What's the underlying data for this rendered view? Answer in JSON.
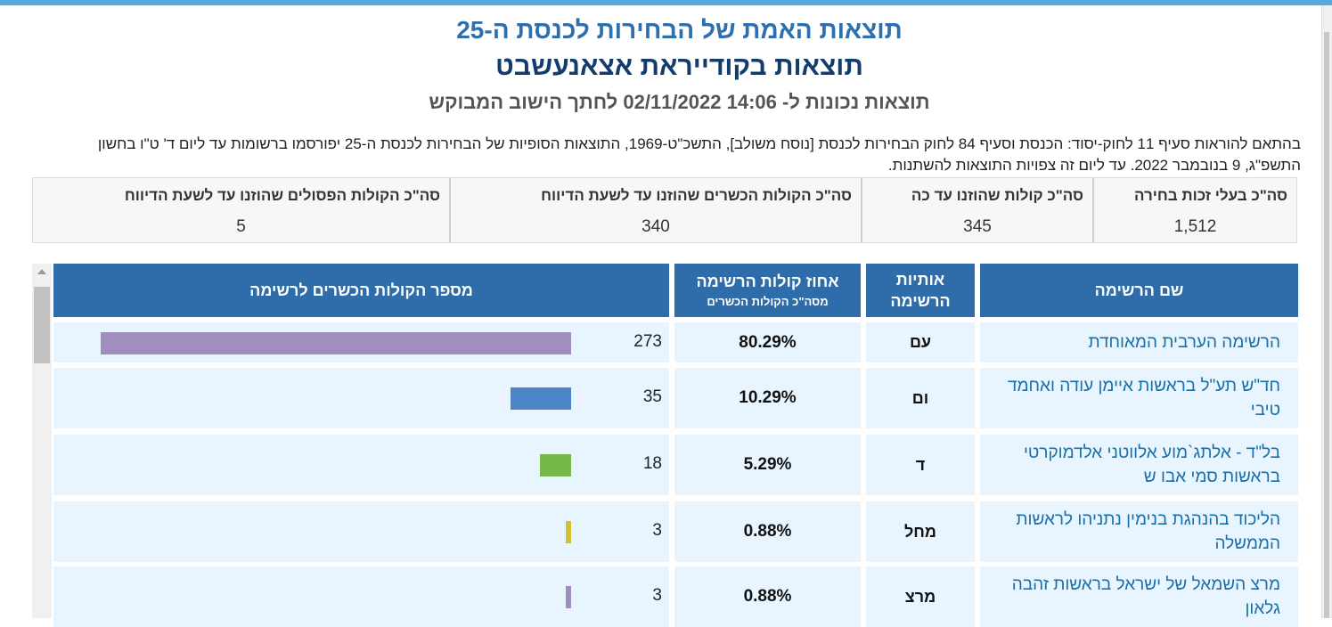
{
  "header": {
    "title": "תוצאות האמת של הבחירות לכנסת ה-25",
    "locality": "תוצאות בקודייראת אצאנעשבט",
    "timestamp_line": "תוצאות נכונות ל- 14:06 02/11/2022  לחתך הישוב המבוקש",
    "note": "בהתאם להוראות סעיף 11 לחוק-יסוד: הכנסת וסעיף 84 לחוק הבחירות לכנסת [נוסח משולב], התשכ\"ט-1969, התוצאות הסופיות של הבחירות לכנסת ה-25 יפורסמו ברשומות עד ליום ד' ט\"ו בחשון התשפ\"ג, 9 בנובמבר 2022. עד ליום זה צפויות התוצאות להשתנות."
  },
  "summary": [
    {
      "label": "סה\"כ בעלי זכות בחירה",
      "value": "1,512"
    },
    {
      "label": "סה\"כ קולות שהוזנו עד כה",
      "value": "345"
    },
    {
      "label": "סה\"כ הקולות הכשרים שהוזנו עד לשעת הדיווח",
      "value": "340"
    },
    {
      "label": "סה\"כ הקולות הפסולים שהוזנו עד לשעת הדיווח",
      "value": "5"
    }
  ],
  "table": {
    "headers": {
      "name": "שם הרשימה",
      "letters": "אותיות הרשימה",
      "percent": "אחוז קולות הרשימה",
      "percent_sub": "מסה\"כ הקולות הכשרים",
      "votes": "מספר הקולות הכשרים לרשימה"
    },
    "rows": [
      {
        "name": "הרשימה הערבית המאוחדת",
        "letters": "עם",
        "percent": "80.29%",
        "votes": 273,
        "color": "#a08ebe"
      },
      {
        "name": "חד\"ש תע\"ל בראשות איימן עודה ואחמד טיבי",
        "letters": "ום",
        "percent": "10.29%",
        "votes": 35,
        "color": "#4a86c5"
      },
      {
        "name": "בל\"ד - אלתג`מוע אלווטני אלדמוקרטי בראשות סמי אבו ש",
        "letters": "ד",
        "percent": "5.29%",
        "votes": 18,
        "color": "#76b94a"
      },
      {
        "name": "הליכוד בהנהגת בנימין נתניהו לראשות הממשלה",
        "letters": "מחל",
        "percent": "0.88%",
        "votes": 3,
        "color": "#d4c02e"
      },
      {
        "name": "מרצ השמאל של ישראל בראשות זהבה גלאון",
        "letters": "מרצ",
        "percent": "0.88%",
        "votes": 3,
        "color": "#a08ebe"
      }
    ]
  }
}
